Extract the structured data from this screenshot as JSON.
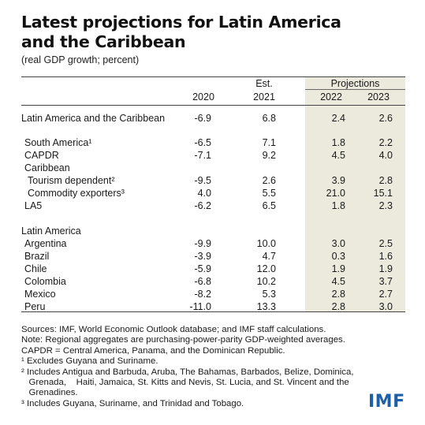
{
  "title_line1": "Latest projections for Latin America",
  "title_line2": "and the Caribbean",
  "subtitle": "(real GDP growth; percent)",
  "header": {
    "projections": "Projections",
    "est": "Est.",
    "y2020": "2020",
    "y2021": "2021",
    "y2022": "2022",
    "y2023": "2023"
  },
  "rows": [
    {
      "label": "Latin America and the Caribbean",
      "v2020": "-6.9",
      "v2021": "6.8",
      "v2022": "2.4",
      "v2023": "2.6"
    },
    {
      "label": "South America¹",
      "v2020": "-6.5",
      "v2021": "7.1",
      "v2022": "1.8",
      "v2023": "2.2"
    },
    {
      "label": "CAPDR",
      "v2020": "-7.1",
      "v2021": "9.2",
      "v2022": "4.5",
      "v2023": "4.0"
    },
    {
      "label": "Caribbean",
      "v2020": "",
      "v2021": "",
      "v2022": "",
      "v2023": ""
    },
    {
      "label": "Tourism dependent²",
      "v2020": "-9.5",
      "v2021": "2.6",
      "v2022": "3.9",
      "v2023": "2.8"
    },
    {
      "label": "Commodity exporters³",
      "v2020": "4.0",
      "v2021": "5.5",
      "v2022": "21.0",
      "v2023": "15.1"
    },
    {
      "label": "LA5",
      "v2020": "-6.2",
      "v2021": "6.5",
      "v2022": "1.8",
      "v2023": "2.3"
    },
    {
      "label": "Latin America",
      "v2020": "",
      "v2021": "",
      "v2022": "",
      "v2023": ""
    },
    {
      "label": "Argentina",
      "v2020": "-9.9",
      "v2021": "10.0",
      "v2022": "3.0",
      "v2023": "2.5"
    },
    {
      "label": "Brazil",
      "v2020": "-3.9",
      "v2021": "4.7",
      "v2022": "0.3",
      "v2023": "1.6"
    },
    {
      "label": "Chile",
      "v2020": "-5.9",
      "v2021": "12.0",
      "v2022": "1.9",
      "v2023": "1.9"
    },
    {
      "label": "Colombia",
      "v2020": "-6.8",
      "v2021": "10.2",
      "v2022": "4.5",
      "v2023": "3.7"
    },
    {
      "label": "Mexico",
      "v2020": "-8.2",
      "v2021": "5.3",
      "v2022": "2.8",
      "v2023": "2.7"
    },
    {
      "label": "Peru",
      "v2020": "-11.0",
      "v2021": "13.3",
      "v2022": "2.8",
      "v2023": "3.0"
    }
  ],
  "notes": [
    "Sources: IMF, World Economic Outlook database; and IMF staff calculations.",
    "Note: Regional aggregates are purchasing-power-parity GDP-weighted averages.",
    "CAPDR = Central America, Panama, and the Dominican Republic.",
    "¹ Excludes Guyana and Suriname.",
    "² Includes Antigua and Barbuda, Aruba, The Bahamas, Barbados, Belize, Dominica,",
    "   Grenada,    Haiti, Jamaica, St. Kitts and Nevis, St. Lucia, and St. Vincent and the",
    "   Grenadines.",
    "³ Includes Guyana, Suriname, and Trinidad and Tobago."
  ],
  "logo": "IMF",
  "colors": {
    "projection_shade": "#ece9dd",
    "logo_blue": "#1f5fa8"
  }
}
